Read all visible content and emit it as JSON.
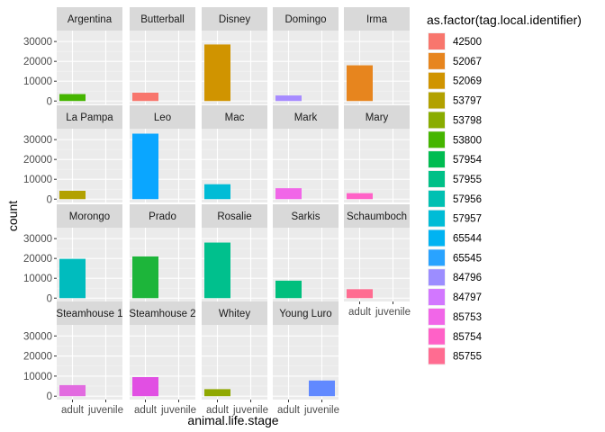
{
  "chart_data": {
    "type": "bar",
    "facet_by": "tag.local.identifier",
    "xlabel": "animal.life.stage",
    "ylabel": "count",
    "x_categories": [
      "adult",
      "juvenile"
    ],
    "y_ticks": [
      0,
      10000,
      20000,
      30000
    ],
    "ylim": [
      -1700,
      35500
    ],
    "legend": {
      "title": "as.factor(tag.local.identifier)",
      "placement": "right",
      "entries": [
        {
          "label": "42500",
          "color": "#F8766D"
        },
        {
          "label": "52067",
          "color": "#E7851E"
        },
        {
          "label": "52069",
          "color": "#D09400"
        },
        {
          "label": "53797",
          "color": "#B2A100"
        },
        {
          "label": "53798",
          "color": "#89AC00"
        },
        {
          "label": "53800",
          "color": "#45B500"
        },
        {
          "label": "57954",
          "color": "#00BC51"
        },
        {
          "label": "57955",
          "color": "#00C087"
        },
        {
          "label": "57956",
          "color": "#00C0B2"
        },
        {
          "label": "57957",
          "color": "#00BCD6"
        },
        {
          "label": "65544",
          "color": "#00B3F2"
        },
        {
          "label": "65545",
          "color": "#29A3FF"
        },
        {
          "label": "84796",
          "color": "#9C8DFF"
        },
        {
          "label": "84797",
          "color": "#D277FF"
        },
        {
          "label": "85753",
          "color": "#F166E8"
        },
        {
          "label": "85754",
          "color": "#FF61C7"
        },
        {
          "label": "85755",
          "color": "#FF6C91"
        }
      ]
    },
    "panels": [
      {
        "name": "Argentina",
        "stage": "adult",
        "value": 3500,
        "color": "#45B500"
      },
      {
        "name": "Butterball",
        "stage": "adult",
        "value": 4200,
        "color": "#F8766D"
      },
      {
        "name": "Disney",
        "stage": "adult",
        "value": 28500,
        "color": "#D09400"
      },
      {
        "name": "Domingo",
        "stage": "adult",
        "value": 2800,
        "color": "#A78BFF"
      },
      {
        "name": "Irma",
        "stage": "adult",
        "value": 18000,
        "color": "#E7851E"
      },
      {
        "name": "La Pampa",
        "stage": "adult",
        "value": 4200,
        "color": "#B2A100"
      },
      {
        "name": "Leo",
        "stage": "adult",
        "value": 33000,
        "color": "#0AA6FF"
      },
      {
        "name": "Mac",
        "stage": "adult",
        "value": 7500,
        "color": "#00BCD6"
      },
      {
        "name": "Mark",
        "stage": "adult",
        "value": 5500,
        "color": "#F166E8"
      },
      {
        "name": "Mary",
        "stage": "adult",
        "value": 3000,
        "color": "#FF61C7"
      },
      {
        "name": "Morongo",
        "stage": "adult",
        "value": 19800,
        "color": "#00BCBE"
      },
      {
        "name": "Prado",
        "stage": "adult",
        "value": 21000,
        "color": "#1DB53A"
      },
      {
        "name": "Rosalie",
        "stage": "adult",
        "value": 28000,
        "color": "#00C08D"
      },
      {
        "name": "Sarkis",
        "stage": "adult",
        "value": 8800,
        "color": "#00BF7D"
      },
      {
        "name": "Schaumboch",
        "stage": "adult",
        "value": 4500,
        "color": "#FF6C91"
      },
      {
        "name": "Steamhouse 1",
        "stage": "adult",
        "value": 5500,
        "color": "#E26BE0"
      },
      {
        "name": "Steamhouse 2",
        "stage": "adult",
        "value": 9500,
        "color": "#E14FE3"
      },
      {
        "name": "Whitey",
        "stage": "adult",
        "value": 3500,
        "color": "#8FA800"
      },
      {
        "name": "Young Luro",
        "stage": "juvenile",
        "value": 7800,
        "color": "#6189FF"
      }
    ]
  }
}
